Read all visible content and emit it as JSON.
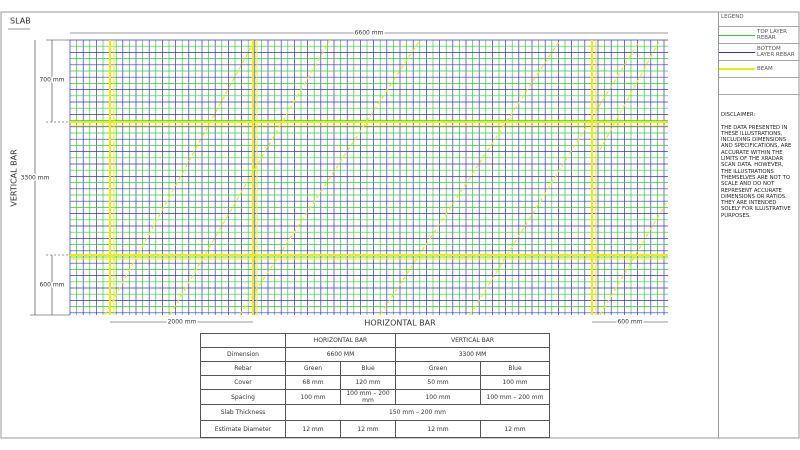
{
  "title": "SLAB",
  "dimensions": {
    "top": "6600 mm",
    "left_top": "700 mm",
    "left_overall": "3300 mm",
    "left_bottom": "600 mm",
    "bottom_left": "2000 mm",
    "bottom_right": "600 mm"
  },
  "axis_labels": {
    "vertical": "VERTICAL BAR",
    "horizontal": "HORIZONTAL BAR"
  },
  "table": {
    "header": [
      "HORIZONTAL BAR",
      "VERTICAL BAR"
    ],
    "dimension": [
      "Dimension",
      "6600 MM",
      "3300 MM"
    ],
    "rows": [
      [
        "Rebar",
        "Green",
        "Blue",
        "Green",
        "Blue"
      ],
      [
        "Cover",
        "68 mm",
        "120 mm",
        "50 mm",
        "100 mm"
      ],
      [
        "Spacing",
        "100 mm",
        "100 mm – 200 mm",
        "100 mm",
        "100 mm – 200 mm"
      ]
    ],
    "slab_thickness": [
      "Slab Thickness",
      "150 mm – 200 mm"
    ],
    "diameter": [
      "Estimate Diameter",
      "12 mm",
      "12 mm",
      "12 mm",
      "12 mm"
    ]
  },
  "legend": {
    "title": "LEGEND",
    "items": [
      "TOP LAYER REBAR",
      "BOTTOM LAYER REBAR",
      "BEAM"
    ]
  },
  "disclaimer": {
    "title": "DISCLAIMER:",
    "text": "THE DATA PRESENTED IN THESE ILLUSTRATIONS, INCLUDING DIMENSIONS AND SPECIFICATIONS, ARE ACCURATE WITHIN THE LIMITS OF THE XRADAR SCAN DATA. HOWEVER, THE ILLUSTRATIONS THEMSELVES ARE NOT TO SCALE AND DO NOT REPRESENT ACCURATE DIMENSIONS OR RATIOS. THEY ARE INTENDED SOLELY FOR ILLUSTRATIVE PURPOSES."
  }
}
